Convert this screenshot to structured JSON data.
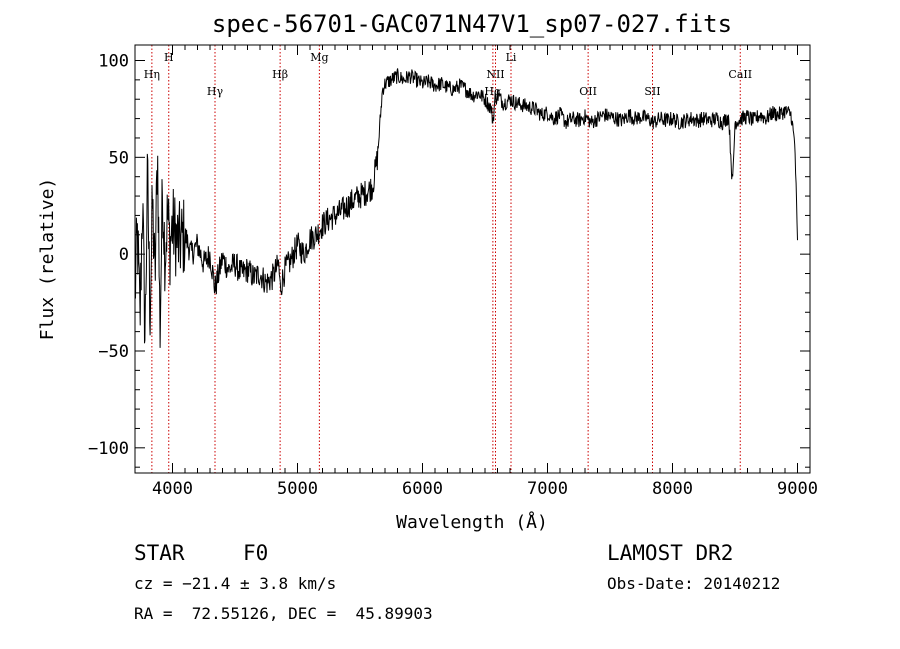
{
  "chart_data": {
    "type": "line",
    "title": "spec-56701-GAC071N47V1_sp07-027.fits",
    "xlabel": "Wavelength (Å)",
    "ylabel": "Flux (relative)",
    "xlim": [
      3700,
      9100
    ],
    "ylim": [
      -113,
      108
    ],
    "xticks": [
      4000,
      5000,
      6000,
      7000,
      8000,
      9000
    ],
    "yticks": [
      -100,
      -50,
      0,
      50,
      100
    ],
    "grid": false,
    "line_color": "#000000",
    "marker_color": "#cc0000",
    "series": [
      {
        "x": [
          3700,
          3720,
          3740,
          3760,
          3780,
          3800,
          3820,
          3840,
          3860,
          3880,
          3900,
          3920,
          3940,
          3960,
          3980,
          4000,
          4050,
          4100,
          4150,
          4200,
          4250,
          4300,
          4340,
          4400,
          4450,
          4500,
          4550,
          4600,
          4650,
          4700,
          4750,
          4800,
          4850,
          4861,
          4900,
          4950,
          5000,
          5050,
          5100,
          5150,
          5200,
          5250,
          5300,
          5350,
          5400,
          5450,
          5500,
          5550,
          5600,
          5640,
          5660,
          5680,
          5700,
          5750,
          5800,
          5850,
          5900,
          5950,
          6000,
          6050,
          6100,
          6150,
          6200,
          6250,
          6300,
          6350,
          6400,
          6450,
          6500,
          6550,
          6563,
          6580,
          6600,
          6650,
          6700,
          6750,
          6800,
          6850,
          6900,
          6950,
          7000,
          7050,
          7100,
          7150,
          7200,
          7250,
          7300,
          7350,
          7400,
          7450,
          7500,
          7550,
          7600,
          7650,
          7700,
          7750,
          7800,
          7850,
          7900,
          7950,
          8000,
          8050,
          8100,
          8150,
          8200,
          8250,
          8300,
          8350,
          8400,
          8450,
          8480,
          8500,
          8550,
          8600,
          8650,
          8700,
          8750,
          8800,
          8850,
          8900,
          8950,
          8980,
          9000
        ],
        "y": [
          -20,
          10,
          -35,
          30,
          -45,
          40,
          -30,
          25,
          -15,
          55,
          -40,
          35,
          0,
          20,
          5,
          15,
          5,
          10,
          0,
          5,
          -5,
          0,
          -18,
          -2,
          -8,
          -5,
          -10,
          -8,
          -12,
          -10,
          -15,
          -12,
          -5,
          -18,
          -8,
          -3,
          5,
          0,
          8,
          10,
          15,
          18,
          20,
          22,
          25,
          28,
          30,
          32,
          35,
          50,
          68,
          85,
          88,
          90,
          92,
          90,
          92,
          90,
          88,
          89,
          87,
          88,
          86,
          85,
          87,
          85,
          82,
          83,
          80,
          75,
          68,
          80,
          82,
          78,
          80,
          78,
          77,
          76,
          75,
          72,
          73,
          70,
          72,
          68,
          70,
          69,
          71,
          68,
          70,
          72,
          71,
          70,
          69,
          72,
          70,
          71,
          70,
          68,
          70,
          69,
          70,
          68,
          69,
          70,
          69,
          70,
          69,
          70,
          68,
          71,
          35,
          68,
          70,
          71,
          69,
          72,
          70,
          73,
          72,
          74,
          72,
          55,
          5
        ]
      }
    ],
    "line_markers": [
      {
        "label": "Hη",
        "x": 3835,
        "row": 2
      },
      {
        "label": "H",
        "x": 3970,
        "row": 1
      },
      {
        "label": "Hγ",
        "x": 4340,
        "row": 3
      },
      {
        "label": "Hβ",
        "x": 4861,
        "row": 2
      },
      {
        "label": "Mg",
        "x": 5175,
        "row": 1
      },
      {
        "label": "NII",
        "x": 6584,
        "row": 2
      },
      {
        "label": "Hα",
        "x": 6563,
        "row": 3
      },
      {
        "label": "Li",
        "x": 6708,
        "row": 1
      },
      {
        "label": "OII",
        "x": 7325,
        "row": 3
      },
      {
        "label": "SII",
        "x": 7840,
        "row": 3
      },
      {
        "label": "CaII",
        "x": 8542,
        "row": 2
      }
    ]
  },
  "footer": {
    "class_label": "STAR",
    "subclass_label": "F0",
    "cz_text": "cz = −21.4 ± 3.8 km/s",
    "coords_text": "RA =  72.55126, DEC =  45.89903",
    "survey_label": "LAMOST DR2",
    "obs_date_text": "Obs-Date: 20140212"
  }
}
